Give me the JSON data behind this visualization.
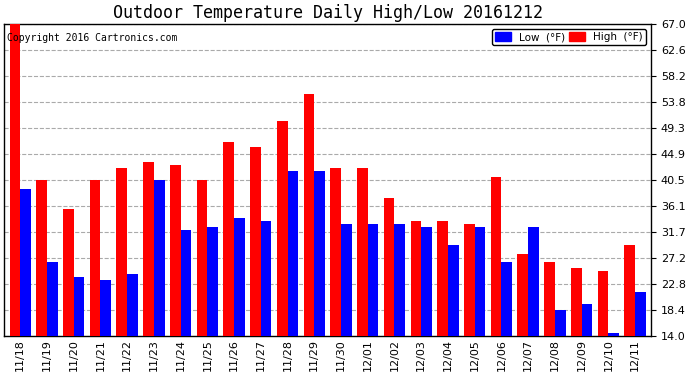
{
  "title": "Outdoor Temperature Daily High/Low 20161212",
  "copyright": "Copyright 2016 Cartronics.com",
  "categories": [
    "11/18",
    "11/19",
    "11/20",
    "11/21",
    "11/22",
    "11/23",
    "11/24",
    "11/25",
    "11/26",
    "11/27",
    "11/28",
    "11/29",
    "11/30",
    "12/01",
    "12/02",
    "12/03",
    "12/04",
    "12/05",
    "12/06",
    "12/07",
    "12/08",
    "12/09",
    "12/10",
    "12/11"
  ],
  "high": [
    67.0,
    40.5,
    35.5,
    40.5,
    42.5,
    43.5,
    43.0,
    40.5,
    47.0,
    46.0,
    50.5,
    55.0,
    42.5,
    42.5,
    37.5,
    33.5,
    33.5,
    33.0,
    41.0,
    28.0,
    26.5,
    25.5,
    25.0,
    29.5
  ],
  "low": [
    39.0,
    26.5,
    24.0,
    23.5,
    24.5,
    40.5,
    32.0,
    32.5,
    34.0,
    33.5,
    42.0,
    42.0,
    33.0,
    33.0,
    33.0,
    32.5,
    29.5,
    32.5,
    26.5,
    32.5,
    18.5,
    19.5,
    14.5,
    21.5
  ],
  "low_color": "#0000ff",
  "high_color": "#ff0000",
  "bg_color": "#ffffff",
  "plot_bg_color": "#ffffff",
  "grid_color": "#aaaaaa",
  "border_color": "#000000",
  "ylim": [
    14.0,
    67.0
  ],
  "yticks": [
    14.0,
    18.4,
    22.8,
    27.2,
    31.7,
    36.1,
    40.5,
    44.9,
    49.3,
    53.8,
    58.2,
    62.6,
    67.0
  ],
  "title_fontsize": 12,
  "copyright_fontsize": 7,
  "tick_fontsize": 8,
  "legend_low_label": "Low  (°F)",
  "legend_high_label": "High  (°F)"
}
